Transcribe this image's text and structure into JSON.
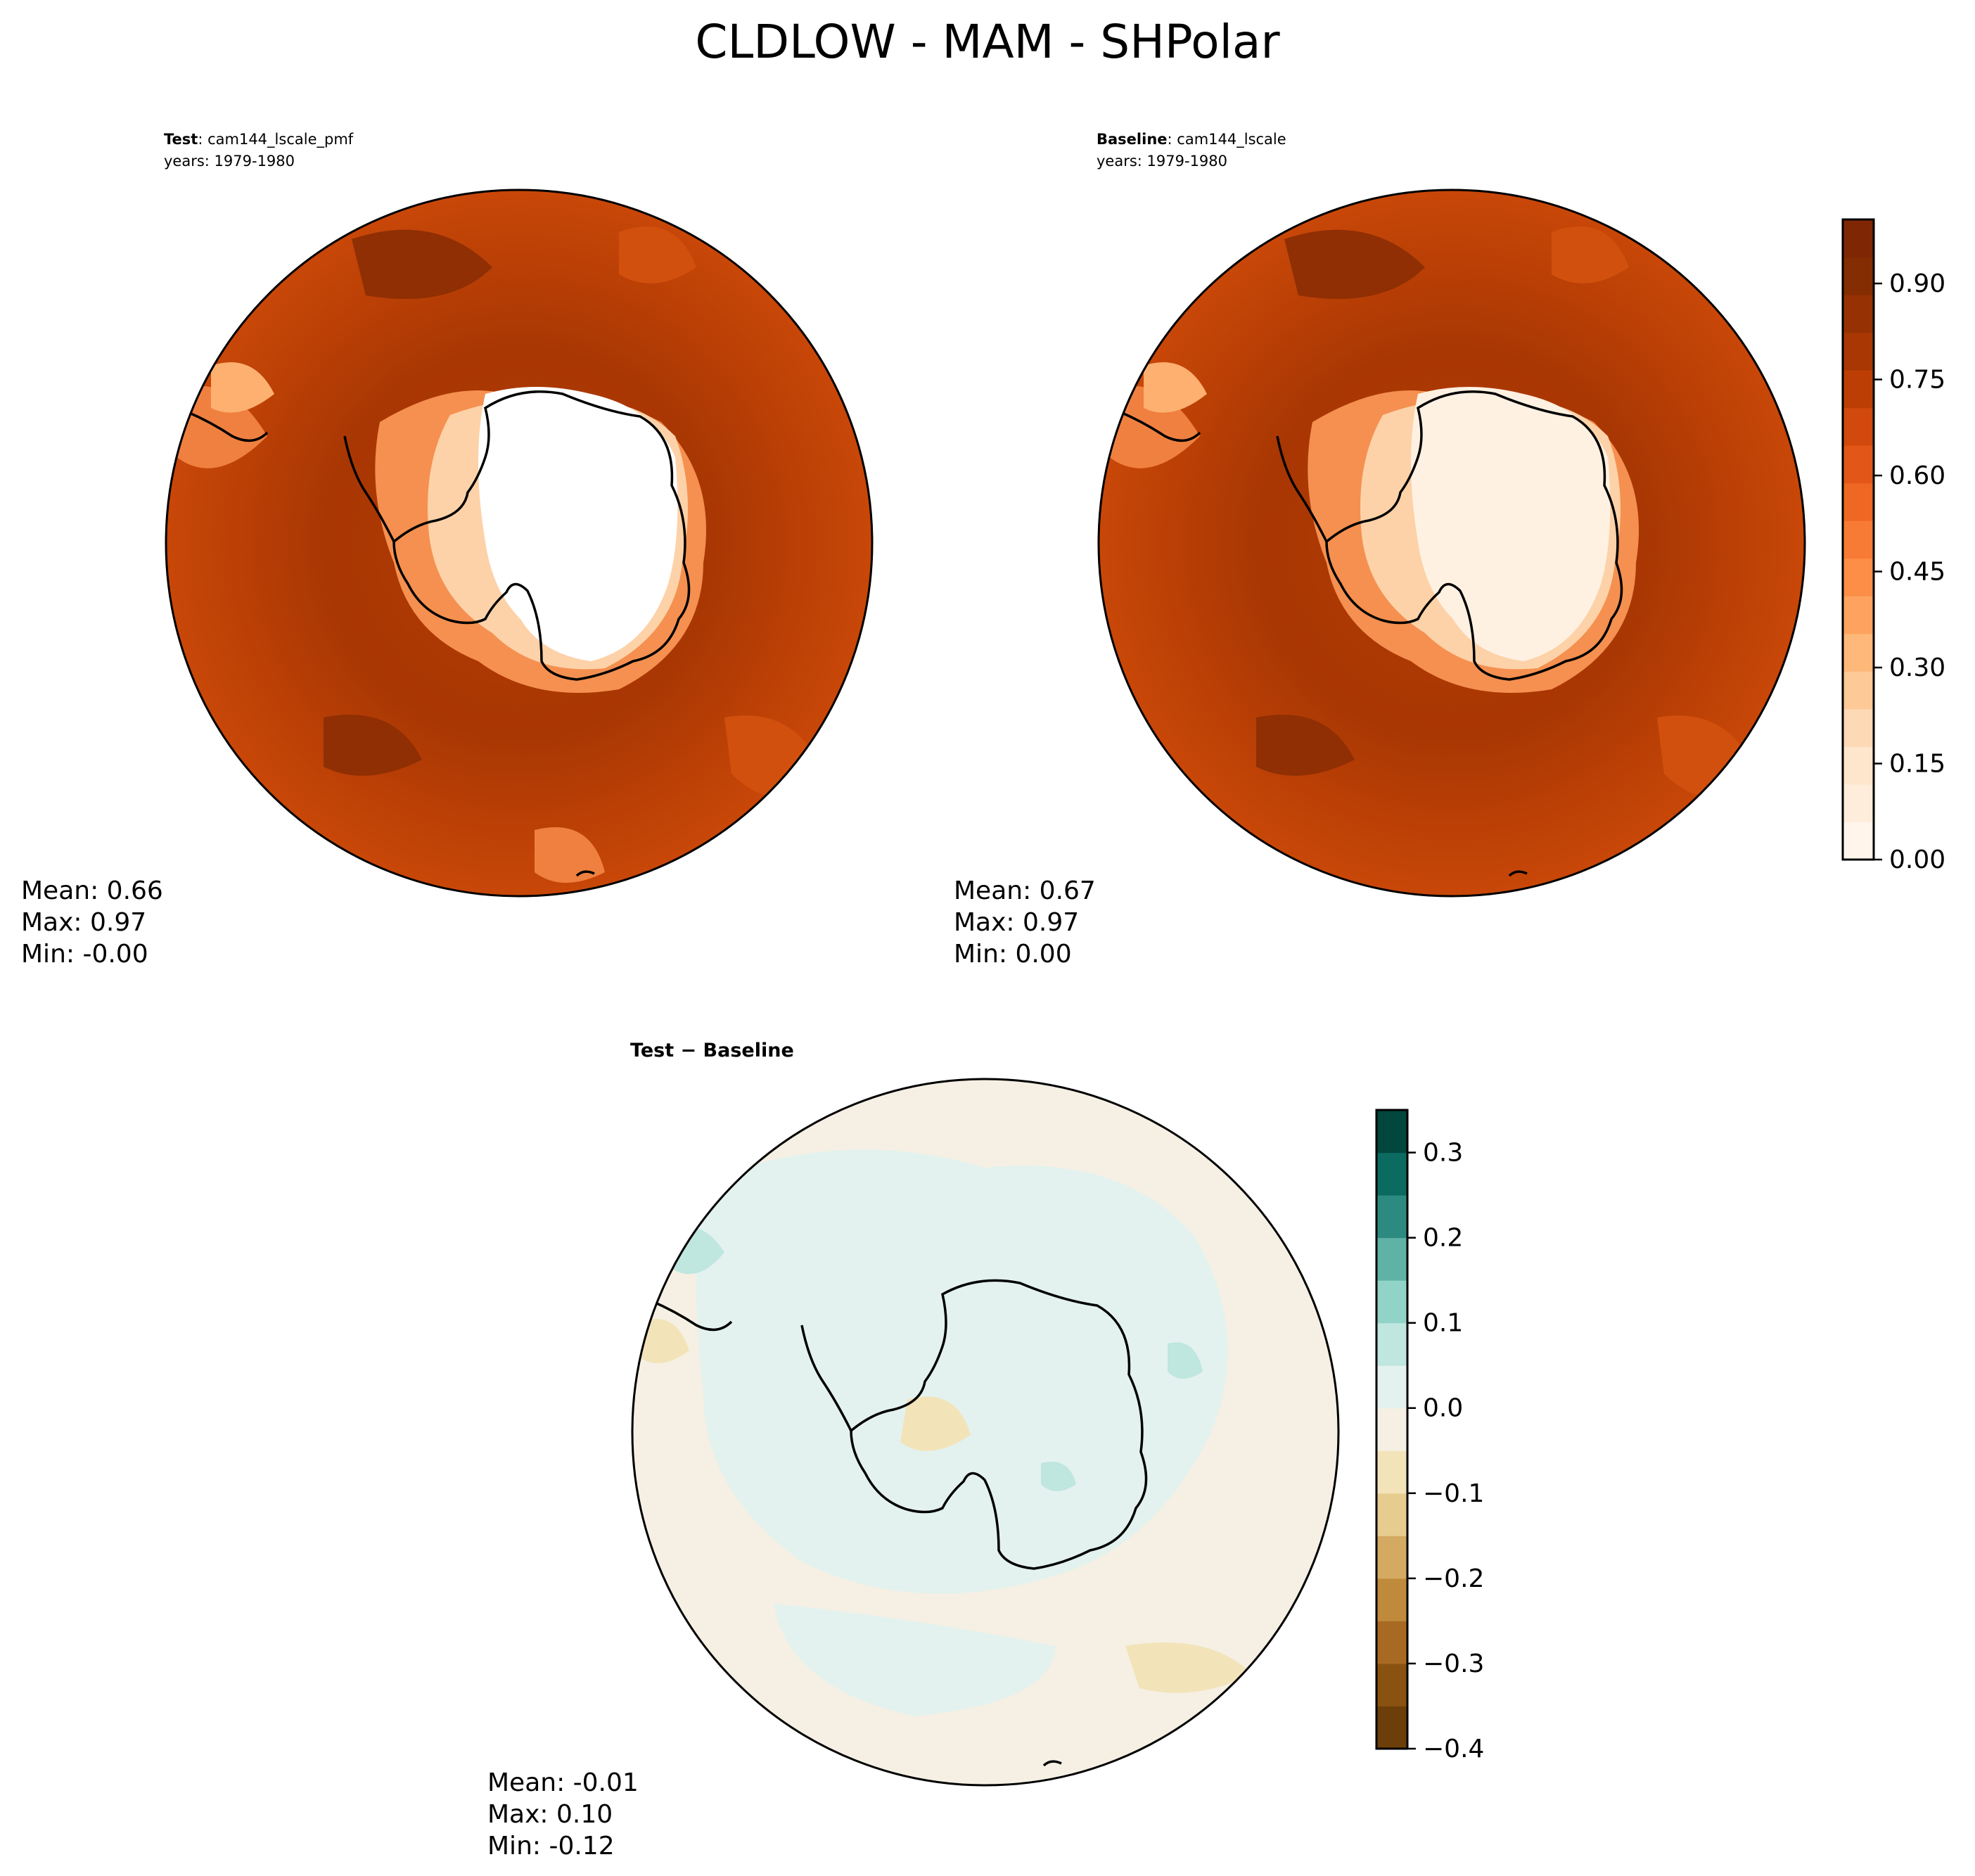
{
  "figure": {
    "title": "CLDLOW - MAM - SHPolar"
  },
  "panels": {
    "test": {
      "label_bold": "Test",
      "label_sep": ": ",
      "case": "cam144_lscale_pmf",
      "years": "years: 1979-1980",
      "stats": {
        "mean": "Mean:  0.66",
        "max": "Max:  0.97",
        "min": "Min: -0.00"
      }
    },
    "baseline": {
      "label_bold": "Baseline",
      "label_sep": ": ",
      "case": "cam144_lscale",
      "years": "years: 1979-1980",
      "stats": {
        "mean": "Mean:  0.67",
        "max": "Max:  0.97",
        "min": "Min:  0.00"
      }
    },
    "diff": {
      "label": "Test − Baseline",
      "stats": {
        "mean": "Mean: -0.01",
        "max": "Max:  0.10",
        "min": "Min: -0.12"
      }
    }
  },
  "colorbars": {
    "main": {
      "ticks": [
        "0.00",
        "0.15",
        "0.30",
        "0.45",
        "0.60",
        "0.75",
        "0.90"
      ],
      "colors": [
        "#fff5eb",
        "#feeddb",
        "#fee6cc",
        "#fdd9b5",
        "#fdc997",
        "#fdb87a",
        "#fda35f",
        "#fd8e48",
        "#f77b35",
        "#ee6823",
        "#e25717",
        "#d1490c",
        "#bd3e04",
        "#a93703",
        "#963103",
        "#842d03",
        "#7f2704"
      ]
    },
    "diff": {
      "ticks": [
        "−0.4",
        "−0.3",
        "−0.2",
        "−0.1",
        "0.0",
        "0.1",
        "0.2",
        "0.3"
      ],
      "colors": [
        "#6b3e0a",
        "#8a5211",
        "#a86a22",
        "#c08a3c",
        "#d4aa62",
        "#e6cc8f",
        "#f3e3b9",
        "#f5f0e3",
        "#e3f2ef",
        "#bfe6df",
        "#92d3c8",
        "#5fb2a6",
        "#2d8a80",
        "#0b6b61",
        "#01473d"
      ]
    }
  },
  "chart_data": [
    {
      "type": "heatmap",
      "title": "Test: cam144_lscale_pmf",
      "projection": "south-polar stereographic",
      "variable": "CLDLOW",
      "season": "MAM",
      "region": "SHPolar",
      "colorbar_range": [
        0,
        1
      ],
      "mean": 0.66,
      "max": 0.97,
      "min": -0.0
    },
    {
      "type": "heatmap",
      "title": "Baseline: cam144_lscale",
      "projection": "south-polar stereographic",
      "variable": "CLDLOW",
      "season": "MAM",
      "region": "SHPolar",
      "colorbar_range": [
        0,
        1
      ],
      "mean": 0.67,
      "max": 0.97,
      "min": 0.0
    },
    {
      "type": "heatmap",
      "title": "Test − Baseline",
      "projection": "south-polar stereographic",
      "colorbar_range": [
        -0.4,
        0.35
      ],
      "mean": -0.01,
      "max": 0.1,
      "min": -0.12
    }
  ]
}
